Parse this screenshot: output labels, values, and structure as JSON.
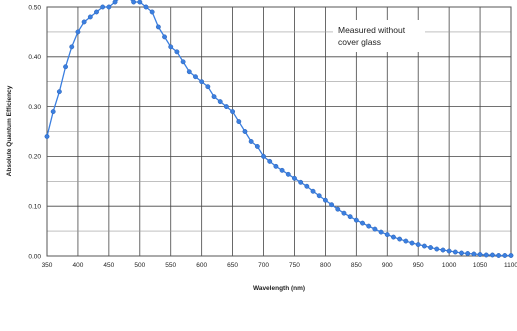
{
  "chart_data": {
    "type": "line",
    "title": "",
    "xlabel": "Wavelength (nm)",
    "ylabel": "Absolute Quantum Efficiency",
    "xlim": [
      350,
      1100
    ],
    "ylim": [
      0.0,
      0.5
    ],
    "grid": true,
    "x_ticks": [
      350,
      400,
      450,
      500,
      550,
      600,
      650,
      700,
      750,
      800,
      850,
      900,
      950,
      1000,
      1050,
      1100
    ],
    "x_tick_labels": [
      "350",
      "400",
      "450",
      "500",
      "550",
      "600",
      "650",
      "700",
      "750",
      "800",
      "850",
      "900",
      "950",
      "1000",
      "1050",
      "1100"
    ],
    "y_ticks": [
      0.0,
      0.1,
      0.2,
      0.3,
      0.4,
      0.5
    ],
    "y_tick_labels": [
      "0.00",
      "0.10",
      "0.20",
      "0.30",
      "0.40",
      "0.50"
    ],
    "annotation_lines": [
      "Measured without",
      "cover glass"
    ],
    "series": [
      {
        "name": "",
        "color": "#3b7fe0",
        "x": [
          350,
          360,
          370,
          380,
          390,
          400,
          410,
          420,
          430,
          440,
          450,
          460,
          470,
          480,
          490,
          500,
          510,
          520,
          530,
          540,
          550,
          560,
          570,
          580,
          590,
          600,
          610,
          620,
          630,
          640,
          650,
          660,
          670,
          680,
          690,
          700,
          710,
          720,
          730,
          740,
          750,
          760,
          770,
          780,
          790,
          800,
          810,
          820,
          830,
          840,
          850,
          860,
          870,
          880,
          890,
          900,
          910,
          920,
          930,
          940,
          950,
          960,
          970,
          980,
          990,
          1000,
          1010,
          1020,
          1030,
          1040,
          1050,
          1060,
          1070,
          1080,
          1090,
          1100
        ],
        "values": [
          0.24,
          0.29,
          0.33,
          0.38,
          0.42,
          0.45,
          0.47,
          0.48,
          0.49,
          0.5,
          0.5,
          0.51,
          0.52,
          0.52,
          0.51,
          0.51,
          0.5,
          0.49,
          0.46,
          0.44,
          0.42,
          0.41,
          0.39,
          0.37,
          0.36,
          0.35,
          0.34,
          0.32,
          0.31,
          0.3,
          0.29,
          0.27,
          0.25,
          0.23,
          0.22,
          0.2,
          0.19,
          0.18,
          0.172,
          0.164,
          0.156,
          0.148,
          0.14,
          0.13,
          0.121,
          0.112,
          0.103,
          0.094,
          0.086,
          0.079,
          0.072,
          0.066,
          0.06,
          0.054,
          0.048,
          0.043,
          0.038,
          0.034,
          0.03,
          0.026,
          0.023,
          0.02,
          0.017,
          0.014,
          0.012,
          0.01,
          0.008,
          0.006,
          0.005,
          0.004,
          0.003,
          0.002,
          0.002,
          0.001,
          0.001,
          0.001
        ]
      }
    ]
  }
}
